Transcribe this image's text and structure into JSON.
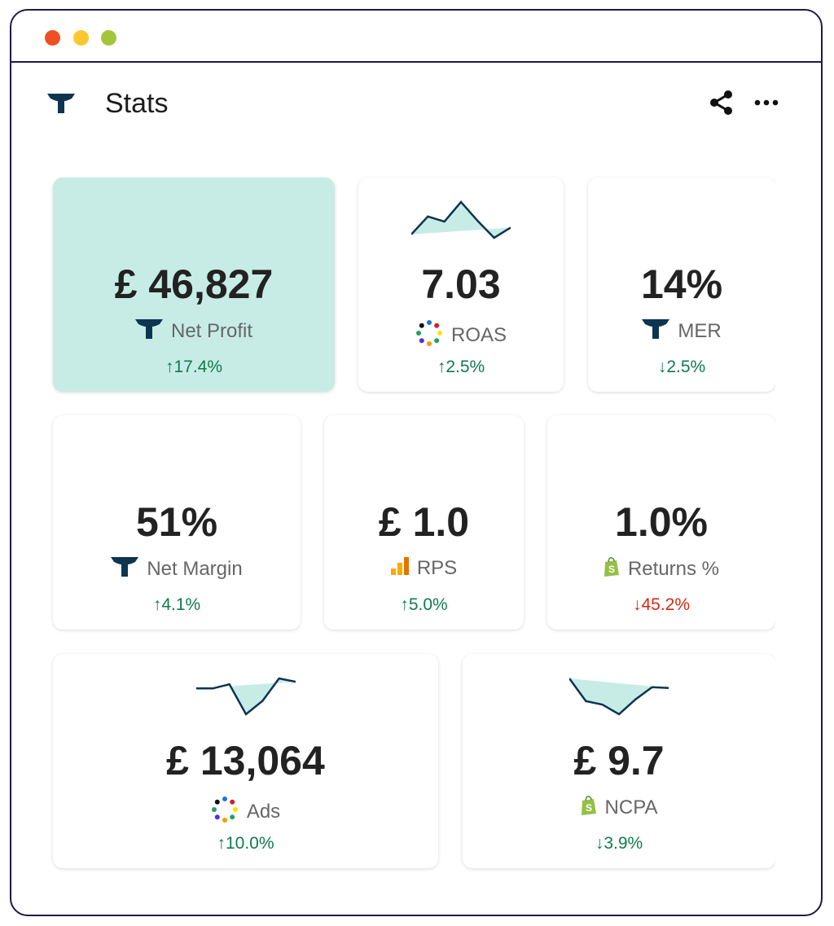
{
  "window": {
    "dots": [
      "#f04e23",
      "#fdc82f",
      "#a4c53b"
    ]
  },
  "header": {
    "title": "Stats",
    "share_icon": "share-icon",
    "more_icon": "more-icon"
  },
  "colors": {
    "brand": "#0d3451",
    "card_highlight": "#c7ece6",
    "positive": "#0f7a4f",
    "negative": "#d12a14",
    "spark_fill": "#c7ece6"
  },
  "cards": [
    {
      "value": "£ 46,827",
      "label": "Net Profit",
      "icon": "brand-logo-icon",
      "change": "↑17.4%",
      "trend": "positive"
    },
    {
      "value": "7.03",
      "label": "ROAS",
      "icon": "dots-circle-icon",
      "change": "↑2.5%",
      "trend": "positive",
      "sparkline": [
        12,
        33,
        27,
        50,
        28,
        8,
        20
      ]
    },
    {
      "value": "14%",
      "label": "MER",
      "icon": "brand-logo-icon",
      "change": "↓2.5%",
      "trend": "positive"
    },
    {
      "value": "51%",
      "label": "Net Margin",
      "icon": "brand-logo-icon",
      "change": "↑4.1%",
      "trend": "positive"
    },
    {
      "value": "£ 1.0",
      "label": "RPS",
      "icon": "bar-chart-icon",
      "change": "↑5.0%",
      "trend": "positive"
    },
    {
      "value": "1.0%",
      "label": "Returns %",
      "icon": "shopify-icon",
      "change": "↓45.2%",
      "trend": "negative"
    },
    {
      "value": "£ 13,064",
      "label": "Ads",
      "icon": "dots-circle-icon",
      "change": "↑10.0%",
      "trend": "positive",
      "sparkline": [
        33,
        33,
        38,
        2,
        18,
        45,
        41
      ]
    },
    {
      "value": "£ 9.7",
      "label": "NCPA",
      "icon": "shopify-icon",
      "change": "↓3.9%",
      "trend": "positive",
      "sparkline": [
        44,
        18,
        14,
        3,
        20,
        34,
        33
      ]
    }
  ]
}
